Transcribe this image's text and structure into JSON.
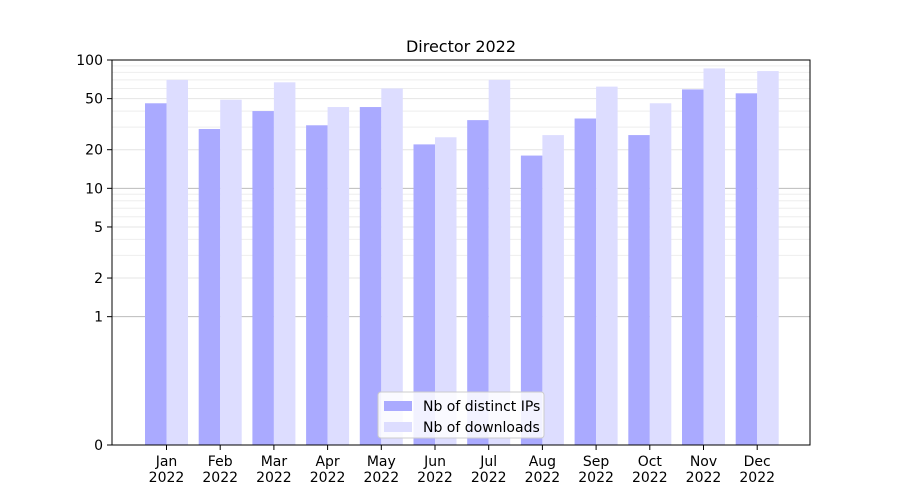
{
  "chart_data": {
    "type": "bar",
    "title": "Director 2022",
    "xlabel": "",
    "ylabel": "",
    "yscale": "symlog",
    "ylim": [
      0,
      100
    ],
    "yticks": [
      0,
      1,
      2,
      5,
      10,
      20,
      50,
      100
    ],
    "ytick_labels": [
      "0",
      "1",
      "2",
      "5",
      "10",
      "20",
      "50",
      "100"
    ],
    "grid": "horizontal",
    "legend_position": "bottom-center",
    "categories": [
      [
        "Jan",
        "2022"
      ],
      [
        "Feb",
        "2022"
      ],
      [
        "Mar",
        "2022"
      ],
      [
        "Apr",
        "2022"
      ],
      [
        "May",
        "2022"
      ],
      [
        "Jun",
        "2022"
      ],
      [
        "Jul",
        "2022"
      ],
      [
        "Aug",
        "2022"
      ],
      [
        "Sep",
        "2022"
      ],
      [
        "Oct",
        "2022"
      ],
      [
        "Nov",
        "2022"
      ],
      [
        "Dec",
        "2022"
      ]
    ],
    "series": [
      {
        "name": "Nb of distinct IPs",
        "color": "#aaaaff",
        "values": [
          46,
          29,
          40,
          31,
          43,
          22,
          34,
          18,
          35,
          26,
          59,
          55
        ]
      },
      {
        "name": "Nb of downloads",
        "color": "#ddddff",
        "values": [
          70,
          49,
          67,
          43,
          60,
          25,
          70,
          26,
          62,
          46,
          86,
          82
        ]
      }
    ]
  }
}
